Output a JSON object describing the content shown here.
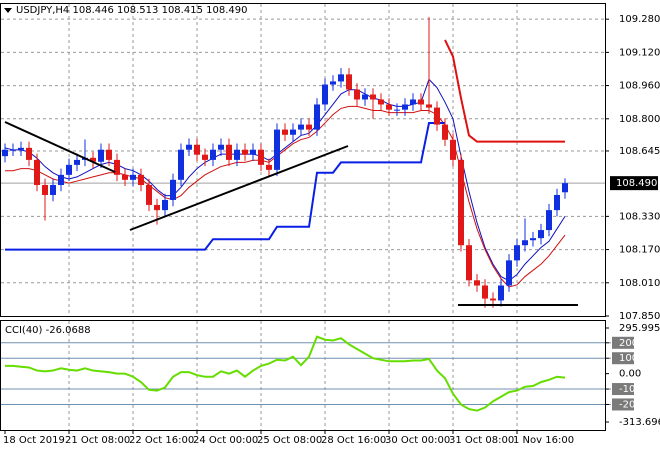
{
  "chart_data": {
    "type": "candlestick",
    "symbol": "USDJPY,H4",
    "categories": [
      "18 Oct 2019",
      null,
      null,
      null,
      null,
      null,
      null,
      null,
      "21 Oct 08:00",
      null,
      null,
      null,
      null,
      null,
      null,
      null,
      "22 Oct 16:00",
      null,
      null,
      null,
      null,
      null,
      null,
      null,
      "24 Oct 00:00",
      null,
      null,
      null,
      null,
      null,
      null,
      null,
      "25 Oct 08:00",
      null,
      null,
      null,
      null,
      null,
      null,
      null,
      "28 Oct 16:00",
      null,
      null,
      null,
      null,
      null,
      null,
      null,
      "30 Oct 00:00",
      null,
      null,
      null,
      null,
      null,
      null,
      null,
      "31 Oct 08:00",
      null,
      null,
      null,
      null,
      null,
      null,
      null,
      "1 Nov 16:00",
      null,
      null,
      null,
      null,
      null,
      null
    ],
    "open": [
      108.62,
      108.651,
      108.651,
      108.66,
      108.602,
      108.481,
      108.433,
      108.481,
      108.53,
      108.578,
      108.602,
      108.612,
      108.593,
      108.651,
      108.602,
      108.53,
      108.506,
      108.53,
      108.481,
      108.385,
      108.36,
      108.409,
      108.506,
      108.651,
      108.675,
      108.627,
      108.602,
      108.651,
      108.675,
      108.602,
      108.651,
      108.627,
      108.651,
      108.578,
      108.554,
      108.748,
      108.723,
      108.748,
      108.772,
      108.748,
      108.869,
      108.965,
      108.98,
      109.014,
      108.941,
      108.893,
      108.917,
      108.893,
      108.869,
      108.844,
      108.844,
      108.869,
      108.893,
      108.869,
      108.854,
      108.772,
      108.699,
      108.602,
      108.191,
      108.022,
      107.997,
      107.934,
      107.925,
      107.997,
      108.118,
      108.191,
      108.215,
      108.225,
      108.264,
      108.36,
      108.446
    ],
    "high": [
      108.681,
      108.681,
      108.69,
      108.69,
      108.632,
      108.511,
      108.511,
      108.56,
      108.608,
      108.632,
      108.7,
      108.642,
      108.681,
      108.681,
      108.632,
      108.56,
      108.56,
      108.56,
      108.511,
      108.415,
      108.439,
      108.536,
      108.681,
      108.705,
      108.705,
      108.657,
      108.681,
      108.705,
      108.705,
      108.681,
      108.681,
      108.681,
      108.681,
      108.608,
      108.778,
      108.778,
      108.778,
      108.802,
      108.802,
      108.899,
      108.995,
      109.01,
      109.044,
      109.044,
      108.971,
      108.947,
      108.947,
      108.923,
      108.899,
      108.874,
      108.899,
      108.923,
      108.923,
      109.29,
      108.884,
      108.802,
      108.729,
      108.632,
      108.221,
      108.052,
      108.027,
      107.964,
      108.027,
      108.148,
      108.221,
      108.32,
      108.255,
      108.294,
      108.39,
      108.463,
      108.513
    ],
    "low": [
      108.59,
      108.621,
      108.621,
      108.572,
      108.451,
      108.31,
      108.403,
      108.451,
      108.5,
      108.548,
      108.572,
      108.563,
      108.563,
      108.572,
      108.5,
      108.476,
      108.476,
      108.451,
      108.355,
      108.29,
      108.33,
      108.379,
      108.476,
      108.621,
      108.597,
      108.572,
      108.572,
      108.621,
      108.572,
      108.572,
      108.597,
      108.597,
      108.548,
      108.524,
      108.524,
      108.693,
      108.693,
      108.718,
      108.718,
      108.718,
      108.839,
      108.935,
      108.95,
      108.911,
      108.863,
      108.863,
      108.8,
      108.839,
      108.814,
      108.814,
      108.814,
      108.839,
      108.839,
      108.824,
      108.742,
      108.669,
      108.572,
      108.161,
      107.992,
      107.967,
      107.89,
      107.89,
      107.895,
      107.967,
      108.088,
      108.161,
      108.185,
      108.195,
      108.234,
      108.33,
      108.415
    ],
    "close": [
      108.651,
      108.651,
      108.66,
      108.602,
      108.481,
      108.433,
      108.481,
      108.53,
      108.578,
      108.602,
      108.612,
      108.593,
      108.651,
      108.602,
      108.53,
      108.506,
      108.53,
      108.481,
      108.385,
      108.36,
      108.409,
      108.506,
      108.651,
      108.675,
      108.627,
      108.602,
      108.651,
      108.675,
      108.602,
      108.651,
      108.627,
      108.651,
      108.578,
      108.554,
      108.748,
      108.723,
      108.748,
      108.772,
      108.748,
      108.869,
      108.965,
      108.98,
      109.014,
      108.941,
      108.893,
      108.917,
      108.893,
      108.869,
      108.844,
      108.844,
      108.869,
      108.893,
      108.869,
      108.854,
      108.772,
      108.699,
      108.602,
      108.191,
      108.022,
      107.997,
      107.934,
      107.925,
      107.997,
      108.118,
      108.191,
      108.215,
      108.225,
      108.264,
      108.36,
      108.433,
      108.49
    ],
    "value_labels": {
      "open": "108.446",
      "high": "108.513",
      "low": "108.415",
      "close": "108.490"
    },
    "up_color": "#1030e0",
    "down_color": "#e01818",
    "lines": [
      {
        "color": "#1010c0",
        "width": 1,
        "values": [
          108.66,
          108.65,
          108.65,
          108.64,
          108.61,
          108.57,
          108.54,
          108.52,
          108.51,
          108.52,
          108.54,
          108.56,
          108.58,
          108.59,
          108.58,
          108.56,
          108.55,
          108.53,
          108.5,
          108.46,
          108.43,
          108.43,
          108.47,
          108.52,
          108.56,
          108.59,
          108.61,
          108.63,
          108.63,
          108.63,
          108.63,
          108.63,
          108.62,
          108.6,
          108.63,
          108.66,
          108.69,
          108.72,
          108.73,
          108.77,
          108.82,
          108.87,
          108.92,
          108.94,
          108.94,
          108.92,
          108.9,
          108.89,
          108.87,
          108.86,
          108.86,
          108.87,
          108.88,
          108.99,
          108.95,
          108.88,
          108.8,
          108.62,
          108.45,
          108.3,
          108.18,
          108.1,
          108.04,
          108.02,
          108.05,
          108.1,
          108.14,
          108.18,
          108.21,
          108.27,
          108.33
        ]
      },
      {
        "color": "#d01010",
        "width": 1,
        "values": [
          108.55,
          108.55,
          108.56,
          108.56,
          108.55,
          108.53,
          108.51,
          108.5,
          108.49,
          108.5,
          108.51,
          108.52,
          108.53,
          108.54,
          108.54,
          108.53,
          108.52,
          108.51,
          108.48,
          108.45,
          108.42,
          108.41,
          108.43,
          108.47,
          108.5,
          108.53,
          108.55,
          108.57,
          108.58,
          108.59,
          108.59,
          108.6,
          108.6,
          108.59,
          108.62,
          108.65,
          108.68,
          108.7,
          108.71,
          108.74,
          108.78,
          108.82,
          108.85,
          108.86,
          108.86,
          108.85,
          108.84,
          108.84,
          108.83,
          108.83,
          108.83,
          108.83,
          108.84,
          108.84,
          108.82,
          108.77,
          108.7,
          108.55,
          108.4,
          108.27,
          108.17,
          108.09,
          108.03,
          107.99,
          108.0,
          108.04,
          108.07,
          108.1,
          108.14,
          108.19,
          108.24
        ]
      },
      {
        "color": "#0a1fe6",
        "width": 2,
        "values": [
          108.17,
          108.17,
          108.17,
          108.17,
          108.17,
          108.17,
          108.17,
          108.17,
          108.17,
          108.17,
          108.17,
          108.17,
          108.17,
          108.17,
          108.17,
          108.17,
          108.17,
          108.17,
          108.17,
          108.17,
          108.17,
          108.17,
          108.17,
          108.17,
          108.17,
          108.17,
          108.22,
          108.22,
          108.22,
          108.22,
          108.22,
          108.22,
          108.22,
          108.22,
          108.28,
          108.28,
          108.28,
          108.28,
          108.28,
          108.54,
          108.54,
          108.54,
          108.59,
          108.59,
          108.59,
          108.59,
          108.59,
          108.59,
          108.59,
          108.59,
          108.59,
          108.59,
          108.59,
          108.78,
          108.78,
          108.78,
          null,
          null,
          null,
          null,
          null,
          null,
          null,
          null,
          null,
          null,
          null,
          null,
          null,
          null,
          null
        ]
      },
      {
        "color": "#e01010",
        "width": 2,
        "values": [
          null,
          null,
          null,
          null,
          null,
          null,
          null,
          null,
          null,
          null,
          null,
          null,
          null,
          null,
          null,
          null,
          null,
          null,
          null,
          null,
          null,
          null,
          null,
          null,
          null,
          null,
          null,
          null,
          null,
          null,
          null,
          null,
          null,
          null,
          null,
          null,
          null,
          null,
          null,
          null,
          null,
          null,
          null,
          null,
          null,
          null,
          null,
          null,
          null,
          null,
          null,
          null,
          null,
          null,
          null,
          109.18,
          109.1,
          108.9,
          108.72,
          108.69,
          108.69,
          108.69,
          108.69,
          108.69,
          108.69,
          108.69,
          108.69,
          108.69,
          108.69,
          108.69,
          108.69
        ]
      }
    ],
    "ylim": [
      107.85,
      109.353
    ],
    "yticks": [
      {
        "value": 109.28,
        "label": "109.280"
      },
      {
        "value": 109.12,
        "label": "109.120"
      },
      {
        "value": 108.96,
        "label": "108.960"
      },
      {
        "value": 108.8,
        "label": "108.800"
      },
      108.645,
      {
        "value": 108.33,
        "label": "108.330"
      },
      {
        "value": 108.17,
        "label": "108.170"
      },
      {
        "value": 108.01,
        "label": "108.010"
      },
      {
        "value": 107.85,
        "label": "107.850"
      }
    ],
    "grid": true,
    "cci": {
      "title": "CCI(40)",
      "color": "#66dd00",
      "values": [
        50,
        50,
        45,
        40,
        20,
        15,
        20,
        35,
        25,
        20,
        35,
        20,
        15,
        10,
        0,
        0,
        -20,
        -55,
        -105,
        -110,
        -90,
        -20,
        10,
        10,
        -10,
        -20,
        -20,
        15,
        0,
        20,
        -20,
        20,
        50,
        65,
        90,
        85,
        110,
        55,
        110,
        240,
        220,
        215,
        230,
        190,
        160,
        130,
        100,
        90,
        80,
        80,
        80,
        85,
        85,
        95,
        20,
        -30,
        -130,
        -200,
        -230,
        -240,
        -220,
        -180,
        -150,
        -120,
        -110,
        -85,
        -80,
        -55,
        -40,
        -20,
        -26.0688
      ],
      "ylim": [
        -313.696,
        295.9956
      ],
      "yticks": [
        295.9956,
        200,
        100,
        {
          "value": 0,
          "label": "0.00"
        },
        -100,
        -200,
        -313.696
      ],
      "levels": [
        200,
        100,
        -100,
        -200
      ]
    }
  }
}
